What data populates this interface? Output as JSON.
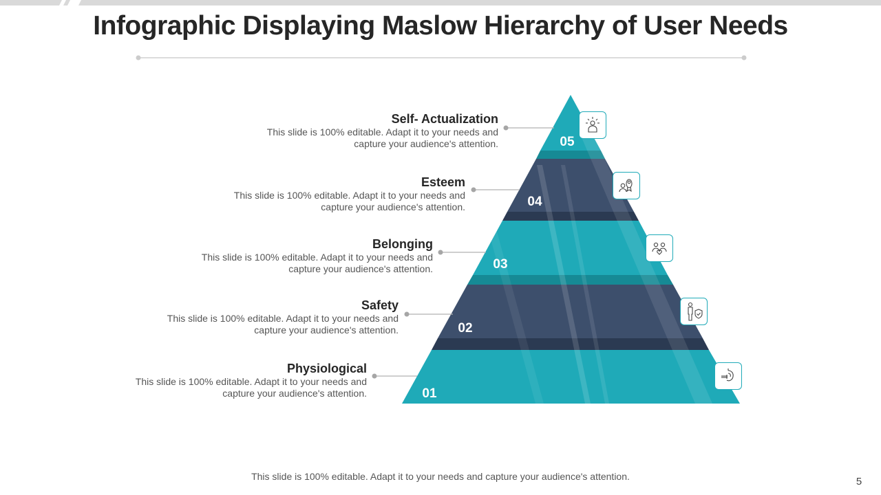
{
  "title": "Infographic Displaying Maslow Hierarchy of User Needs",
  "footer": "This slide is 100% editable. Adapt it to your needs and capture your audience's attention.",
  "page_number": "5",
  "colors": {
    "teal": "#1faab8",
    "teal_dark": "#168a95",
    "navy": "#3d4f6c",
    "navy_dark": "#2b3a52",
    "band_gray": "#d9d9d9"
  },
  "levels": [
    {
      "number": "05",
      "title": "Self- Actualization",
      "desc_line1": "This slide is 100% editable. Adapt it to your needs and",
      "desc_line2": "capture your audience's attention.",
      "icon": "self-actualization-person-icon"
    },
    {
      "number": "04",
      "title": "Esteem",
      "desc_line1": "This slide is 100% editable. Adapt it to your needs and",
      "desc_line2": "capture your audience's attention.",
      "icon": "esteem-award-person-icon"
    },
    {
      "number": "03",
      "title": "Belonging",
      "desc_line1": "This slide is 100% editable. Adapt it to your needs and",
      "desc_line2": "capture your audience's attention.",
      "icon": "belonging-people-heart-icon"
    },
    {
      "number": "02",
      "title": "Safety",
      "desc_line1": "This slide is 100% editable. Adapt it to your needs and",
      "desc_line2": "capture your audience's attention.",
      "icon": "safety-person-shield-icon"
    },
    {
      "number": "01",
      "title": "Physiological",
      "desc_line1": "This slide is 100% editable. Adapt it to your needs and",
      "desc_line2": "capture your audience's attention.",
      "icon": "physiological-stomach-icon"
    }
  ]
}
